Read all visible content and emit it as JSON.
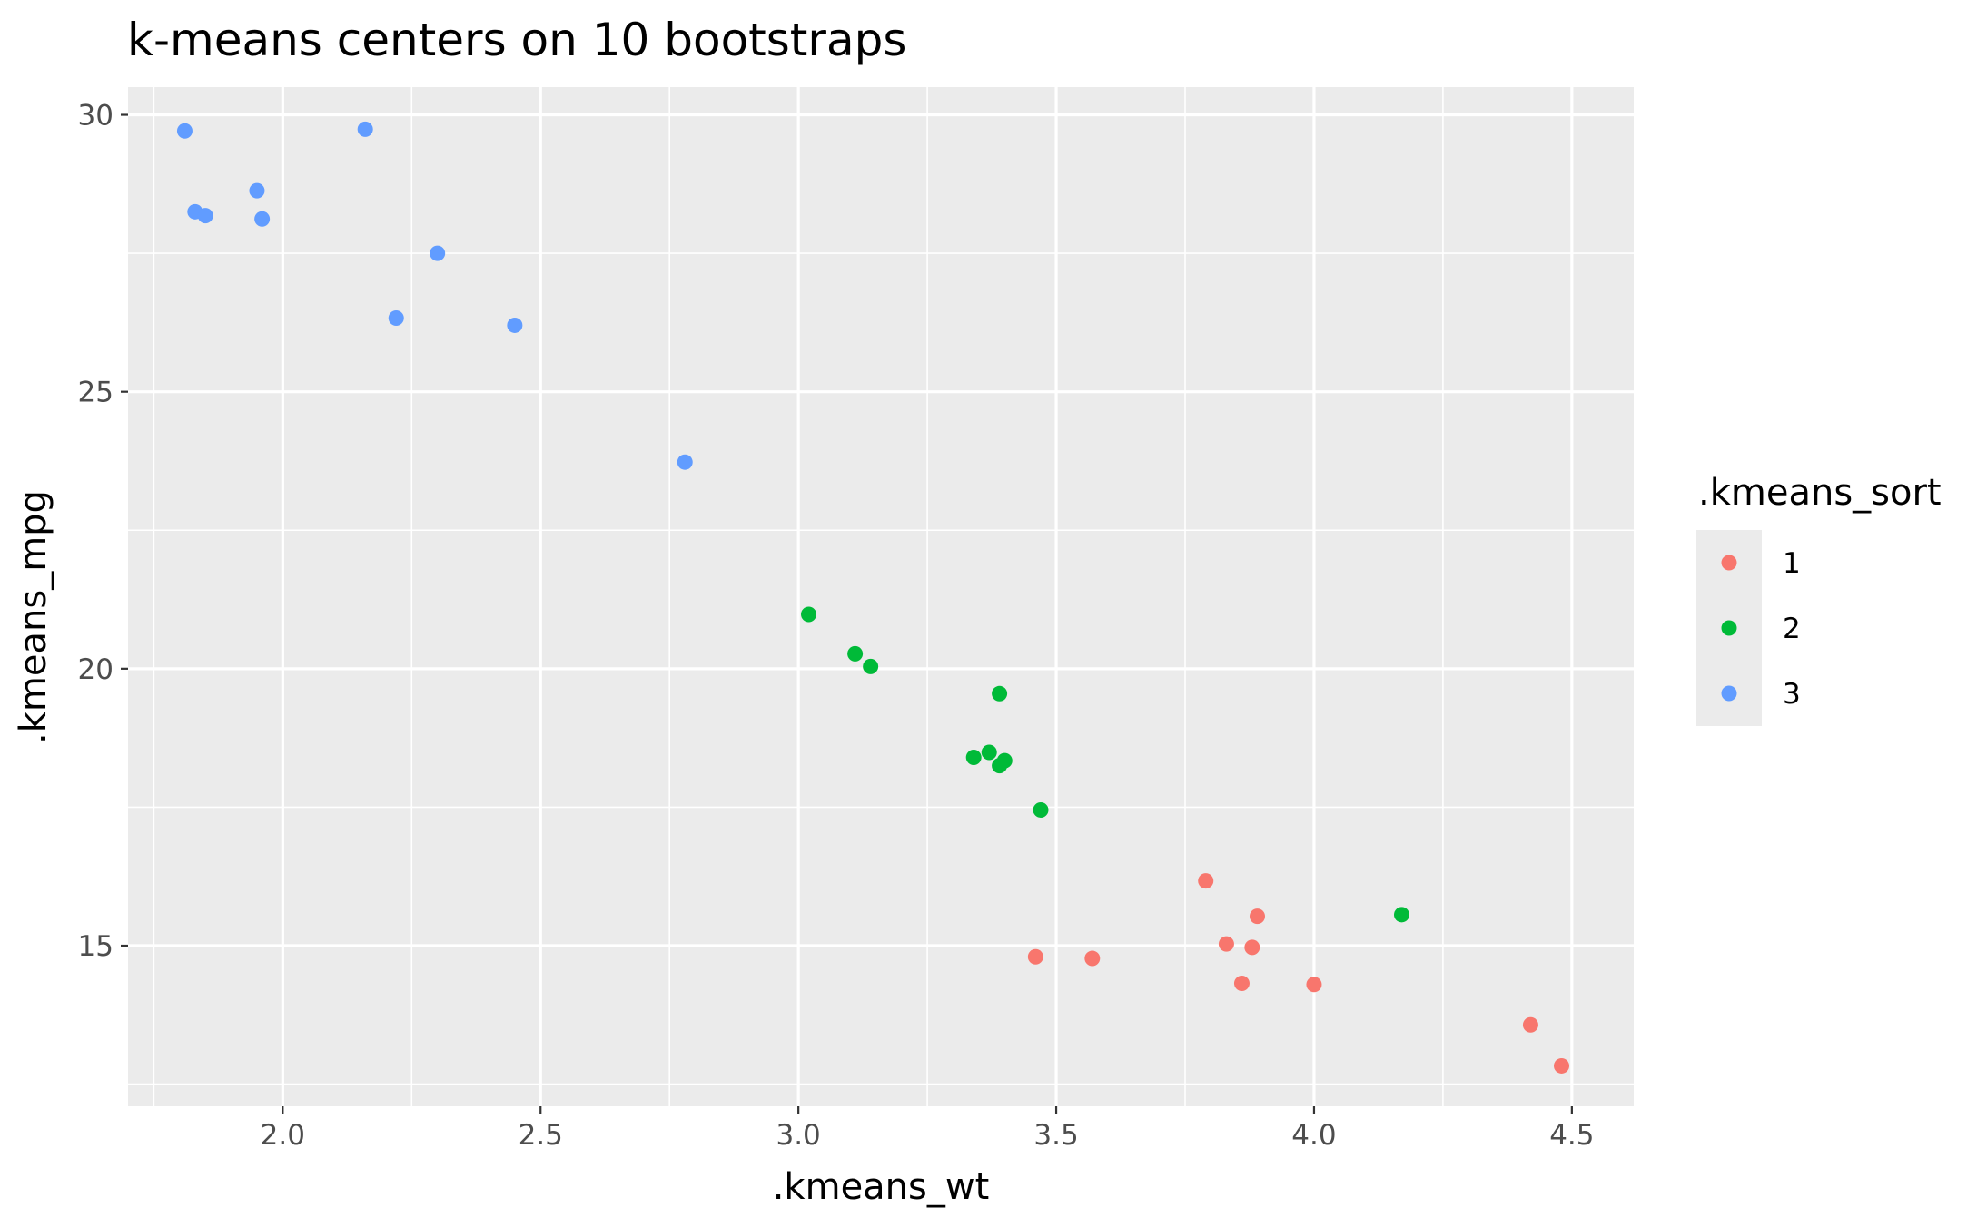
{
  "chart_data": {
    "type": "scatter",
    "title": "k-means centers on 10 bootstraps",
    "xlabel": ".kmeans_wt",
    "ylabel": ".kmeans_mpg",
    "xlim": [
      1.7,
      4.62
    ],
    "ylim": [
      12.1,
      30.5
    ],
    "x_ticks": [
      2.0,
      2.5,
      3.0,
      3.5,
      4.0,
      4.5
    ],
    "x_tick_labels": [
      "2.0",
      "2.5",
      "3.0",
      "3.5",
      "4.0",
      "4.5"
    ],
    "y_ticks": [
      15,
      20,
      25,
      30
    ],
    "y_tick_labels": [
      "15",
      "20",
      "25",
      "30"
    ],
    "grid": true,
    "legend": {
      "title": ".kmeans_sort",
      "placement": "right"
    },
    "series": [
      {
        "name": "1",
        "color": "#F8766D",
        "points": [
          {
            "x": 3.46,
            "y": 14.8
          },
          {
            "x": 3.57,
            "y": 14.77
          },
          {
            "x": 3.79,
            "y": 16.17
          },
          {
            "x": 3.83,
            "y": 15.03
          },
          {
            "x": 3.86,
            "y": 14.32
          },
          {
            "x": 3.88,
            "y": 14.97
          },
          {
            "x": 3.89,
            "y": 15.53
          },
          {
            "x": 4.0,
            "y": 14.3
          },
          {
            "x": 4.42,
            "y": 13.57
          },
          {
            "x": 4.48,
            "y": 12.83
          }
        ]
      },
      {
        "name": "2",
        "color": "#00BA38",
        "points": [
          {
            "x": 3.02,
            "y": 20.98
          },
          {
            "x": 3.11,
            "y": 20.27
          },
          {
            "x": 3.14,
            "y": 20.04
          },
          {
            "x": 3.34,
            "y": 18.4
          },
          {
            "x": 3.37,
            "y": 18.49
          },
          {
            "x": 3.39,
            "y": 19.55
          },
          {
            "x": 3.39,
            "y": 18.25
          },
          {
            "x": 3.4,
            "y": 18.34
          },
          {
            "x": 3.47,
            "y": 17.45
          },
          {
            "x": 4.17,
            "y": 15.56
          }
        ]
      },
      {
        "name": "3",
        "color": "#619CFF",
        "points": [
          {
            "x": 1.81,
            "y": 29.71
          },
          {
            "x": 1.83,
            "y": 28.25
          },
          {
            "x": 1.85,
            "y": 28.18
          },
          {
            "x": 1.95,
            "y": 28.63
          },
          {
            "x": 1.96,
            "y": 28.12
          },
          {
            "x": 2.16,
            "y": 29.74
          },
          {
            "x": 2.22,
            "y": 26.33
          },
          {
            "x": 2.3,
            "y": 27.5
          },
          {
            "x": 2.45,
            "y": 26.2
          },
          {
            "x": 2.78,
            "y": 23.73
          }
        ]
      }
    ]
  }
}
